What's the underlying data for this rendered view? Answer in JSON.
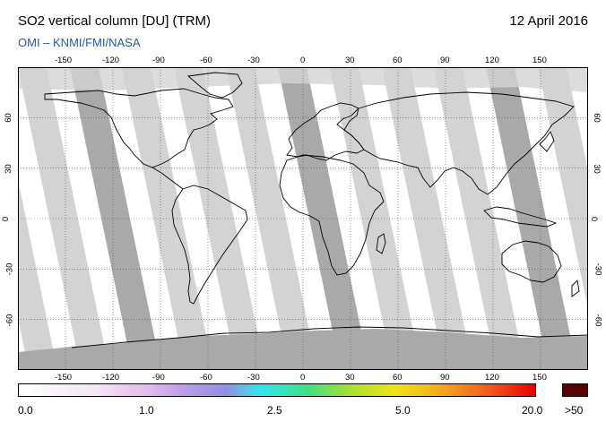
{
  "header": {
    "title": "SO2 vertical column [DU] (TRM)",
    "date": "12 April 2016",
    "credit": "OMI  –  KNMI/FMI/NASA"
  },
  "map": {
    "projection": "equirectangular",
    "lon_range": [
      -180,
      180
    ],
    "lat_range": [
      -90,
      90
    ],
    "x_ticks": [
      "-150",
      "-120",
      "-90",
      "-60",
      "-30",
      "0",
      "30",
      "60",
      "90",
      "120",
      "150"
    ],
    "x_tick_values": [
      -150,
      -120,
      -90,
      -60,
      -30,
      0,
      30,
      60,
      90,
      120,
      150
    ],
    "y_ticks": [
      "60",
      "30",
      "0",
      "-30",
      "-60"
    ],
    "y_tick_values": [
      60,
      30,
      0,
      -30,
      -60
    ],
    "colors": {
      "background": "#ffffff",
      "swath_light": "#d3d3d3",
      "swath_dark": "#a9a9a9",
      "polar_fill": "#a9a9a9",
      "coastline": "#000000",
      "grid": "#555555"
    }
  },
  "colorbar": {
    "labels": [
      "0.0",
      "1.0",
      "2.5",
      "5.0",
      "20.0"
    ],
    "over_label": ">50",
    "colors": [
      "#ffffff",
      "#f3e6f6",
      "#e6b8ef",
      "#b49be8",
      "#8f8fe8",
      "#33e6f0",
      "#3fe07f",
      "#a8e032",
      "#f2e21a",
      "#f5a623",
      "#f05a1e",
      "#e60000"
    ],
    "over_color": "#5a0000"
  }
}
